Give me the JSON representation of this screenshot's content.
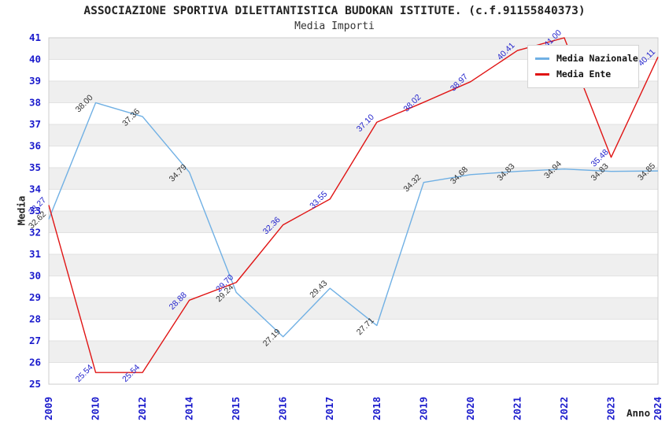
{
  "chart_data": {
    "type": "line",
    "title": "ASSOCIAZIONE SPORTIVA DILETTANTISTICA BUDOKAN ISTITUTE. (c.f.91155840373)",
    "subtitle": "Media Importi",
    "xlabel": "Anno",
    "ylabel": "Media",
    "ylim": [
      25,
      41
    ],
    "y_tick_step": 1,
    "grid": "horizontal-stripes",
    "legend_position": "top-right",
    "categories": [
      "2009",
      "2010",
      "2012",
      "2014",
      "2015",
      "2016",
      "2017",
      "2018",
      "2019",
      "2020",
      "2021",
      "2022",
      "2023",
      "2024"
    ],
    "series": [
      {
        "name": "Media Nazionale",
        "color": "#70b0e4",
        "label_color": "#333333",
        "values": [
          32.62,
          38.0,
          37.36,
          34.79,
          29.24,
          27.19,
          29.43,
          27.71,
          34.32,
          34.68,
          34.83,
          34.94,
          34.83,
          34.85
        ]
      },
      {
        "name": "Media Ente",
        "color": "#e01414",
        "label_color": "#2222cc",
        "values": [
          33.27,
          25.54,
          25.54,
          28.88,
          29.7,
          32.36,
          33.55,
          37.1,
          38.02,
          38.97,
          40.41,
          41.0,
          35.48,
          40.11
        ]
      }
    ],
    "colors": {
      "tick_label": "#1a1acc",
      "stripe": "#efefef",
      "gridline": "#e2e2e2",
      "plot_border": "#cccccc"
    }
  }
}
